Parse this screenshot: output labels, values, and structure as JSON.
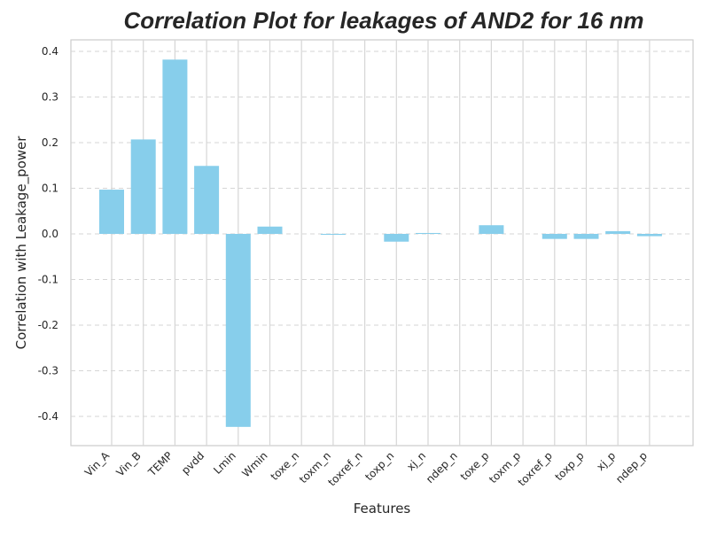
{
  "chart_data": {
    "type": "bar",
    "title": "Correlation Plot for leakages of AND2 for 16 nm",
    "xlabel": "Features",
    "ylabel": "Correlation with Leakage_power",
    "categories": [
      "Vin_A",
      "Vin_B",
      "TEMP",
      "pvdd",
      "Lmin",
      "Wmin",
      "toxe_n",
      "toxm_n",
      "toxref_n",
      "toxp_n",
      "xj_n",
      "ndep_n",
      "toxe_p",
      "toxm_p",
      "toxref_p",
      "toxp_p",
      "xj_p",
      "ndep_p"
    ],
    "values": [
      0.097,
      0.207,
      0.382,
      0.149,
      -0.423,
      0.016,
      0.0,
      -0.002,
      0.0,
      -0.017,
      0.002,
      0.0,
      0.019,
      0.0,
      -0.011,
      -0.011,
      0.006,
      -0.005
    ],
    "yticks": [
      "0.4",
      "0.3",
      "0.2",
      "0.1",
      "0.0",
      "-0.1",
      "-0.2",
      "-0.3",
      "-0.4"
    ],
    "ytick_values": [
      0.4,
      0.3,
      0.2,
      0.1,
      0.0,
      -0.1,
      -0.2,
      -0.3,
      -0.4
    ],
    "ylim": [
      -0.465,
      0.425
    ],
    "grid": true,
    "bar_color": "#87CEEB"
  }
}
